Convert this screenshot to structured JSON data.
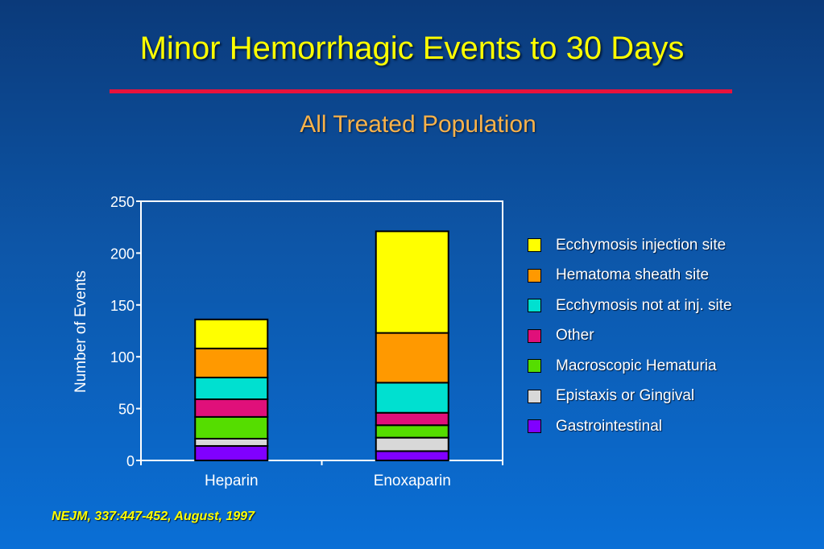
{
  "slide": {
    "title": "Minor Hemorrhagic Events to 30 Days",
    "subtitle": "All Treated Population",
    "source": "NEJM, 337:447-452, August, 1997",
    "title_color": "#ffff00",
    "subtitle_color": "#f9b24a",
    "rule_color": "#e8123c"
  },
  "chart_data": {
    "type": "bar",
    "stacked": true,
    "categories": [
      "Heparin",
      "Enoxaparin"
    ],
    "ylabel": "Number of Events",
    "xlabel": "",
    "ylim": [
      0,
      250
    ],
    "yticks": [
      0,
      50,
      100,
      150,
      200,
      250
    ],
    "grid": false,
    "legend_position": "right",
    "series": [
      {
        "name": "Gastrointestinal",
        "color": "#8000ff",
        "values": [
          14,
          9
        ]
      },
      {
        "name": "Epistaxis or Gingival",
        "color": "#d8d8d8",
        "values": [
          7,
          13
        ]
      },
      {
        "name": "Macroscopic Hematuria",
        "color": "#55dd00",
        "values": [
          21,
          12
        ]
      },
      {
        "name": "Other",
        "color": "#e0107a",
        "values": [
          17,
          12
        ]
      },
      {
        "name": "Ecchymosis not at inj. site",
        "color": "#00e0d0",
        "values": [
          21,
          29
        ]
      },
      {
        "name": "Hematoma sheath site",
        "color": "#ff9900",
        "values": [
          28,
          48
        ]
      },
      {
        "name": "Ecchymosis injection site",
        "color": "#ffff00",
        "values": [
          28,
          98
        ]
      }
    ]
  }
}
